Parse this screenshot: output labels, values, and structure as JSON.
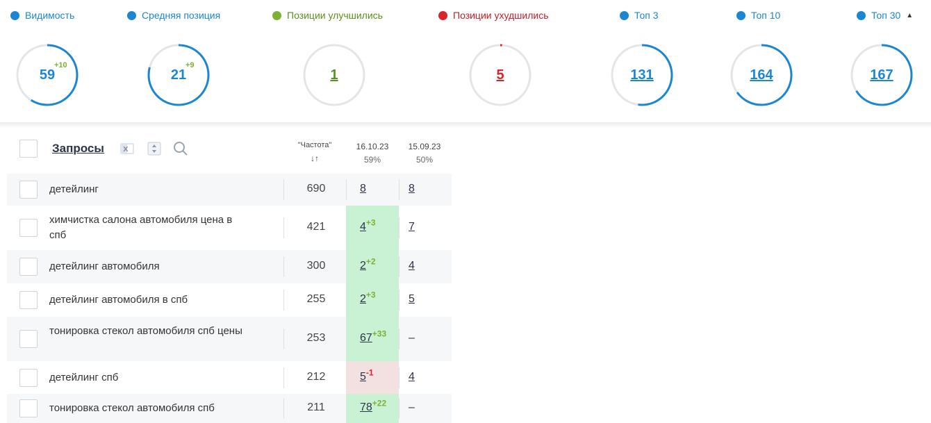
{
  "colors": {
    "blue": "#1b87d3",
    "green": "#7db133",
    "red": "#d9232d",
    "track": "#e3e5e8",
    "up_cell": "#c9f2d5",
    "down_cell": "#f3e0e0"
  },
  "metrics": [
    {
      "label": "Видимость",
      "dot_color": "#1b87d3",
      "value": "59",
      "delta": "+10",
      "fraction": 0.59,
      "arc_color": "#1b87d3",
      "value_color": "#1b87d3",
      "link": false
    },
    {
      "label": "Средняя позиция",
      "dot_color": "#1b87d3",
      "value": "21",
      "delta": "+9",
      "fraction": 0.79,
      "arc_color": "#1b87d3",
      "value_color": "#1b87d3",
      "link": false
    },
    {
      "label": "Позиции улучшились",
      "dot_color": "#7db133",
      "value": "1",
      "delta": "",
      "fraction": 0.0,
      "arc_color": "#7db133",
      "value_color": "#5b8f1f",
      "link": true
    },
    {
      "label": "Позиции ухудшились",
      "dot_color": "#d9232d",
      "value": "5",
      "delta": "",
      "fraction": 0.01,
      "arc_color": "#d9232d",
      "value_color": "#d9232d",
      "link": true
    },
    {
      "label": "Топ 3",
      "dot_color": "#1b87d3",
      "value": "131",
      "delta": "",
      "fraction": 0.52,
      "arc_color": "#1b87d3",
      "value_color": "#1b87d3",
      "link": true
    },
    {
      "label": "Топ 10",
      "dot_color": "#1b87d3",
      "value": "164",
      "delta": "",
      "fraction": 0.65,
      "arc_color": "#1b87d3",
      "value_color": "#1b87d3",
      "link": true
    },
    {
      "label": "Топ 30",
      "dot_color": "#1b87d3",
      "value": "167",
      "delta": "",
      "fraction": 0.66,
      "arc_color": "#1b87d3",
      "value_color": "#1b87d3",
      "link": true
    }
  ],
  "table": {
    "title": "Запросы",
    "icons": [
      "excel-icon",
      "sort-columns-icon",
      "search-icon"
    ],
    "freq_header": "\"Частота\"",
    "freq_sort_glyph": "↓↑",
    "date_current": "16.10.23",
    "pct_current": "59%",
    "date_prev": "15.09.23",
    "pct_prev": "50%",
    "rows": [
      {
        "query": "детейлинг",
        "freq": "690",
        "pos": "8",
        "delta": "",
        "trend": "none",
        "prev": "8",
        "prev_link": true
      },
      {
        "query": "химчистка салона автомобиля цена в спб",
        "freq": "421",
        "pos": "4",
        "delta": "+3",
        "trend": "up",
        "prev": "7",
        "prev_link": true
      },
      {
        "query": "детейлинг автомобиля",
        "freq": "300",
        "pos": "2",
        "delta": "+2",
        "trend": "up",
        "prev": "4",
        "prev_link": true
      },
      {
        "query": "детейлинг автомобиля в спб",
        "freq": "255",
        "pos": "2",
        "delta": "+3",
        "trend": "up",
        "prev": "5",
        "prev_link": true
      },
      {
        "query": "тонировка стекол автомобиля спб цены",
        "freq": "253",
        "pos": "67",
        "delta": "+33",
        "trend": "up",
        "prev": "–",
        "prev_link": false
      },
      {
        "query": "детейлинг спб",
        "freq": "212",
        "pos": "5",
        "delta": "-1",
        "trend": "down",
        "prev": "4",
        "prev_link": true
      },
      {
        "query": "тонировка стекол автомобиля спб",
        "freq": "211",
        "pos": "78",
        "delta": "+22",
        "trend": "up",
        "prev": "–",
        "prev_link": false
      }
    ]
  }
}
